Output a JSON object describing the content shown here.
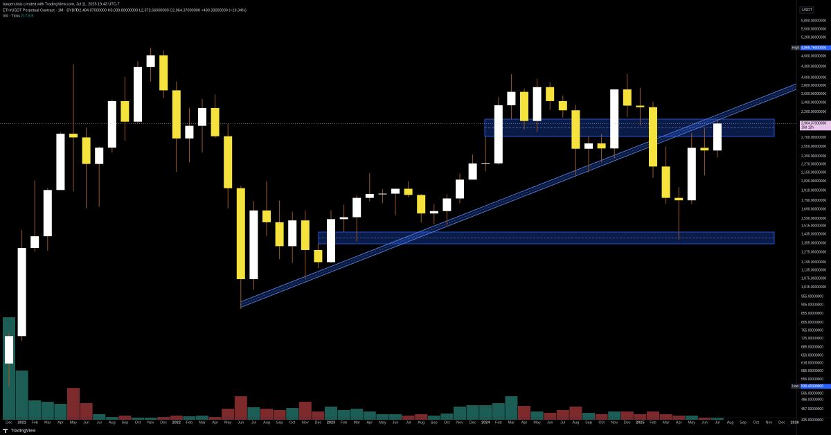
{
  "watermark": "burgercrisis created with TradingView.com, Jul 11, 2025 19:43 UTC-7",
  "symbol": "ETH/USDT Perpetual Contract · 1M · BYBIT",
  "ohlc_legend": "O2,484.07000000 H3,039.89000000 L2,372.66000000 C2,964.37000000 +480.33000000 (+19.34%)",
  "volume_legend": "Vol · Ticks",
  "volume_legend_value": "217.8 K",
  "currency": "USDT",
  "logo": "TradingView",
  "chart_data": {
    "type": "candlestick",
    "log_scale": true,
    "grid": false,
    "ylim": [
      413,
      5940
    ],
    "yticks": [
      {
        "value": 5800,
        "label": "5,800.00000000"
      },
      {
        "value": 5500,
        "label": "5,500.00000000"
      },
      {
        "value": 5200,
        "label": "5,200.00000000"
      },
      {
        "value": 4600,
        "label": "4,600.00000000"
      },
      {
        "value": 4300,
        "label": "4,300.00000000"
      },
      {
        "value": 4000,
        "label": "4,000.00000000"
      },
      {
        "value": 3800,
        "label": "3,800.00000000"
      },
      {
        "value": 3600,
        "label": "3,600.00000000"
      },
      {
        "value": 3400,
        "label": "3,400.00000000"
      },
      {
        "value": 3200,
        "label": "3,200.00000000"
      },
      {
        "value": 2700,
        "label": "2,700.00000000"
      },
      {
        "value": 2550,
        "label": "2,550.00000000"
      },
      {
        "value": 2390,
        "label": "2,390.00000000"
      },
      {
        "value": 2270,
        "label": "2,270.00000000"
      },
      {
        "value": 2150,
        "label": "2,150.00000000"
      },
      {
        "value": 2030,
        "label": "2,030.00000000"
      },
      {
        "value": 1910,
        "label": "1,910.00000000"
      },
      {
        "value": 1790,
        "label": "1,790.00000000"
      },
      {
        "value": 1690,
        "label": "1,690.00000000"
      },
      {
        "value": 1590,
        "label": "1,590.00000000"
      },
      {
        "value": 1515,
        "label": "1,515.00000000"
      },
      {
        "value": 1435,
        "label": "1,435.00000000"
      },
      {
        "value": 1355,
        "label": "1,355.00000000"
      },
      {
        "value": 1275,
        "label": "1,275.00000000"
      },
      {
        "value": 1195,
        "label": "1,195.00000000"
      },
      {
        "value": 1135,
        "label": "1,135.00000000"
      },
      {
        "value": 1075,
        "label": "1,075.00000000"
      },
      {
        "value": 1015,
        "label": "1,015.00000000"
      },
      {
        "value": 955,
        "label": "955.00000000"
      },
      {
        "value": 905,
        "label": "905.00000000"
      },
      {
        "value": 855,
        "label": "855.00000000"
      },
      {
        "value": 805,
        "label": "805.00000000"
      },
      {
        "value": 765,
        "label": "765.00000000"
      },
      {
        "value": 725,
        "label": "725.00000000"
      },
      {
        "value": 685,
        "label": "685.00000000"
      },
      {
        "value": 650,
        "label": "650.00000000"
      },
      {
        "value": 618,
        "label": "618.00000000"
      },
      {
        "value": 586,
        "label": "586.00000000"
      },
      {
        "value": 556,
        "label": "556.00000000"
      },
      {
        "value": 506,
        "label": "506.00000000"
      },
      {
        "value": 486,
        "label": "486.00000000"
      },
      {
        "value": 457,
        "label": "457.00000000"
      },
      {
        "value": 425,
        "label": "425.00000000"
      }
    ],
    "categories": [
      "Dec",
      "2021",
      "Feb",
      "Mar",
      "Apr",
      "May",
      "Jun",
      "Jul",
      "Aug",
      "Sep",
      "Oct",
      "Nov",
      "Dec",
      "2022",
      "Feb",
      "Mar",
      "Apr",
      "May",
      "Jun",
      "Jul",
      "Aug",
      "Sep",
      "Oct",
      "Nov",
      "Dec",
      "2023",
      "Feb",
      "Mar",
      "Apr",
      "May",
      "Jun",
      "Jul",
      "Aug",
      "Sep",
      "Oct",
      "Nov",
      "Dec",
      "2024",
      "Feb",
      "Mar",
      "Apr",
      "May",
      "Jun",
      "Jul",
      "Aug",
      "Sep",
      "Oct",
      "Nov",
      "Dec",
      "2025",
      "Feb",
      "Mar",
      "Apr",
      "May",
      "Jun",
      "Jul"
    ],
    "future_categories": [
      "Aug",
      "Sep",
      "Oct",
      "Nov",
      "Dec",
      "2026"
    ],
    "open": [
      616,
      737,
      1312,
      1417,
      1918,
      2773,
      2706,
      2275,
      2531,
      3433,
      3000,
      4289,
      4631,
      3683,
      2688,
      2920,
      3281,
      2727,
      1941,
      1070,
      1678,
      1553,
      1328,
      1572,
      1295,
      1196,
      1585,
      1605,
      1822,
      1869,
      1873,
      1934,
      1857,
      1645,
      1671,
      1815,
      2053,
      2282,
      2283,
      3340,
      3647,
      3014,
      3762,
      3433,
      3232,
      2513,
      2602,
      2518,
      3705,
      3332,
      3298,
      2237,
      1822,
      1793,
      2528,
      2484.07
    ],
    "high": [
      755,
      1476,
      2042,
      1943,
      2797,
      4372,
      2890,
      2551,
      3470,
      4027,
      4460,
      4865.79,
      4779,
      3900,
      3282,
      3480,
      3582,
      2955,
      1970,
      1784,
      2030,
      1790,
      1664,
      1678,
      1352,
      1680,
      1743,
      1857,
      2142,
      1930,
      1928,
      2029,
      1870,
      1750,
      1866,
      2137,
      2420,
      2718,
      3522,
      4093,
      3730,
      3976,
      3887,
      3560,
      3350,
      2730,
      2770,
      3680,
      4107,
      3745,
      3420,
      2550,
      1955,
      2788,
      2880,
      3039.89
    ],
    "low": [
      530.41,
      714,
      1283,
      1290,
      1935,
      1900,
      1700,
      1718,
      2450,
      2652,
      2970,
      3900,
      3503,
      2159,
      2300,
      2450,
      2700,
      1700,
      880,
      1000,
      1422,
      1220,
      1190,
      1073,
      1150,
      1190,
      1460,
      1370,
      1780,
      1760,
      1625,
      1830,
      1550,
      1530,
      1520,
      1760,
      2050,
      2167,
      2266,
      3055,
      2852,
      2810,
      3242,
      3080,
      2110,
      2150,
      2300,
      2356,
      3096,
      2920,
      2076,
      1754,
      1385,
      1750,
      2111,
      2372.66
    ],
    "close": [
      737,
      1312,
      1417,
      1918,
      2773,
      2706,
      2275,
      2531,
      3433,
      3000,
      4289,
      4631,
      3683,
      2688,
      2920,
      3281,
      2727,
      1941,
      1070,
      1678,
      1553,
      1328,
      1572,
      1295,
      1196,
      1585,
      1605,
      1822,
      1869,
      1873,
      1934,
      1857,
      1645,
      1671,
      1815,
      2053,
      2282,
      2283,
      3340,
      3647,
      3014,
      3762,
      3433,
      3232,
      2513,
      2602,
      2518,
      3705,
      3332,
      3298,
      2237,
      1822,
      1793,
      2528,
      2485,
      2964.37
    ],
    "volume": [
      12900,
      6200,
      2440,
      2260,
      2000,
      4000,
      2090,
      700,
      350,
      520,
      260,
      260,
      350,
      520,
      435,
      520,
      350,
      1390,
      2960,
      1570,
      1390,
      1220,
      1480,
      2260,
      1040,
      1650,
      1220,
      1390,
      1040,
      700,
      700,
      520,
      700,
      520,
      780,
      1650,
      1830,
      1830,
      2090,
      2960,
      1740,
      1040,
      870,
      1220,
      1650,
      870,
      700,
      1040,
      1040,
      700,
      1040,
      700,
      520,
      520,
      260,
      217.8
    ],
    "up_color": "#ffffff",
    "down_color": "#f5e23c",
    "wick_color": "#9a5a2a",
    "volume_up_color": "#1c5e55",
    "volume_down_color": "#7d2a2c",
    "high_marker": {
      "text": "High",
      "value": 4865.79,
      "label": "4,865.79000000"
    },
    "low_marker": {
      "text": "Low",
      "value": 530.41,
      "label": "530.41000000"
    },
    "last_price": {
      "value": 2964.37,
      "label": "2,964.37000000",
      "countdown": "19d 12h"
    }
  }
}
